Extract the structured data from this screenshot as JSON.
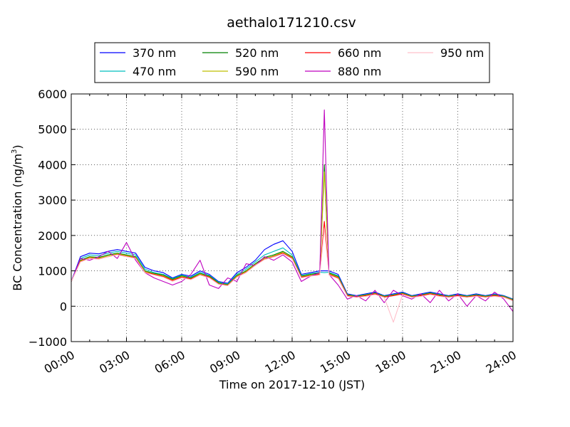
{
  "chart_data": {
    "type": "line",
    "title": "aethalo171210.csv",
    "xlabel": "Time on 2017-12-10 (JST)",
    "ylabel_main": "BC Concentration (ng/m",
    "ylabel_sup": "3",
    "ylabel_end": ")",
    "xlim": [
      0,
      24
    ],
    "ylim": [
      -1000,
      6000
    ],
    "grid": true,
    "legend_position": "top",
    "x_ticks": [
      {
        "value": 0,
        "label": "00:00"
      },
      {
        "value": 3,
        "label": "03:00"
      },
      {
        "value": 6,
        "label": "06:00"
      },
      {
        "value": 9,
        "label": "09:00"
      },
      {
        "value": 12,
        "label": "12:00"
      },
      {
        "value": 15,
        "label": "15:00"
      },
      {
        "value": 18,
        "label": "18:00"
      },
      {
        "value": 21,
        "label": "21:00"
      },
      {
        "value": 24,
        "label": "24:00"
      }
    ],
    "y_ticks": [
      {
        "value": -1000,
        "label": "−1000"
      },
      {
        "value": 0,
        "label": "0"
      },
      {
        "value": 1000,
        "label": "1000"
      },
      {
        "value": 2000,
        "label": "2000"
      },
      {
        "value": 3000,
        "label": "3000"
      },
      {
        "value": 4000,
        "label": "4000"
      },
      {
        "value": 5000,
        "label": "5000"
      },
      {
        "value": 6000,
        "label": "6000"
      }
    ],
    "x": [
      0,
      0.5,
      1,
      1.5,
      2,
      2.5,
      3,
      3.5,
      4,
      4.5,
      5,
      5.5,
      6,
      6.5,
      7,
      7.5,
      8,
      8.5,
      9,
      9.5,
      10,
      10.5,
      11,
      11.5,
      12,
      12.5,
      13,
      13.5,
      13.75,
      14,
      14.5,
      15,
      15.5,
      16,
      16.5,
      17,
      17.5,
      18,
      18.5,
      19,
      19.5,
      20,
      20.5,
      21,
      21.5,
      22,
      22.5,
      23,
      23.5,
      24
    ],
    "series": [
      {
        "name": "370 nm",
        "color": "#0000ff",
        "values": [
          700,
          1400,
          1500,
          1480,
          1550,
          1600,
          1550,
          1500,
          1100,
          1000,
          950,
          800,
          900,
          850,
          1000,
          900,
          700,
          650,
          950,
          1100,
          1300,
          1600,
          1750,
          1850,
          1550,
          900,
          950,
          1000,
          1000,
          1000,
          900,
          350,
          300,
          350,
          400,
          300,
          350,
          400,
          300,
          350,
          400,
          350,
          300,
          350,
          300,
          350,
          300,
          350,
          300,
          200
        ]
      },
      {
        "name": "470 nm",
        "color": "#00bfbf",
        "values": [
          700,
          1350,
          1450,
          1430,
          1500,
          1550,
          1500,
          1450,
          1050,
          950,
          900,
          780,
          880,
          820,
          960,
          870,
          680,
          630,
          900,
          1050,
          1250,
          1450,
          1550,
          1650,
          1450,
          870,
          920,
          960,
          950,
          960,
          860,
          330,
          290,
          330,
          380,
          290,
          330,
          380,
          290,
          330,
          380,
          330,
          290,
          330,
          290,
          330,
          290,
          330,
          290,
          190
        ]
      },
      {
        "name": "520 nm",
        "color": "#008000",
        "values": [
          700,
          1300,
          1400,
          1380,
          1450,
          1500,
          1450,
          1400,
          1000,
          930,
          880,
          760,
          860,
          800,
          930,
          850,
          660,
          610,
          870,
          1000,
          1200,
          1380,
          1450,
          1550,
          1400,
          850,
          900,
          940,
          4000,
          940,
          840,
          320,
          280,
          320,
          370,
          280,
          320,
          370,
          280,
          320,
          370,
          320,
          280,
          320,
          280,
          320,
          280,
          320,
          280,
          180
        ]
      },
      {
        "name": "590 nm",
        "color": "#bfbf00",
        "values": [
          700,
          1280,
          1380,
          1360,
          1420,
          1480,
          1430,
          1380,
          980,
          910,
          860,
          740,
          840,
          780,
          910,
          830,
          640,
          600,
          850,
          980,
          1180,
          1350,
          1420,
          1520,
          1380,
          830,
          880,
          920,
          3800,
          920,
          820,
          310,
          270,
          310,
          360,
          270,
          310,
          360,
          270,
          310,
          360,
          310,
          270,
          310,
          270,
          310,
          270,
          310,
          270,
          170
        ]
      },
      {
        "name": "660 nm",
        "color": "#ff0000",
        "values": [
          700,
          1260,
          1360,
          1340,
          1400,
          1460,
          1410,
          1360,
          960,
          900,
          840,
          730,
          820,
          770,
          890,
          820,
          630,
          590,
          830,
          960,
          1160,
          1330,
          1400,
          1500,
          1360,
          820,
          860,
          900,
          2400,
          900,
          800,
          300,
          260,
          300,
          350,
          260,
          300,
          350,
          260,
          300,
          350,
          300,
          260,
          300,
          260,
          300,
          260,
          300,
          260,
          160
        ]
      },
      {
        "name": "880 nm",
        "color": "#bf00bf",
        "values": [
          700,
          1350,
          1300,
          1400,
          1550,
          1350,
          1800,
          1300,
          950,
          800,
          700,
          600,
          700,
          900,
          1300,
          600,
          500,
          800,
          700,
          1200,
          1150,
          1400,
          1300,
          1450,
          1250,
          700,
          850,
          950,
          5550,
          900,
          600,
          200,
          300,
          150,
          450,
          100,
          450,
          300,
          200,
          350,
          100,
          450,
          150,
          350,
          0,
          300,
          150,
          400,
          200,
          -150
        ]
      },
      {
        "name": "950 nm",
        "color": "#ffc0cb",
        "values": [
          700,
          1250,
          1350,
          1330,
          1400,
          1450,
          1400,
          1350,
          950,
          880,
          820,
          700,
          800,
          750,
          880,
          800,
          620,
          580,
          820,
          950,
          1150,
          1320,
          1390,
          1480,
          1340,
          800,
          850,
          880,
          2200,
          880,
          780,
          280,
          250,
          280,
          330,
          250,
          -450,
          330,
          250,
          280,
          330,
          280,
          250,
          280,
          250,
          280,
          250,
          280,
          250,
          150
        ]
      }
    ]
  }
}
